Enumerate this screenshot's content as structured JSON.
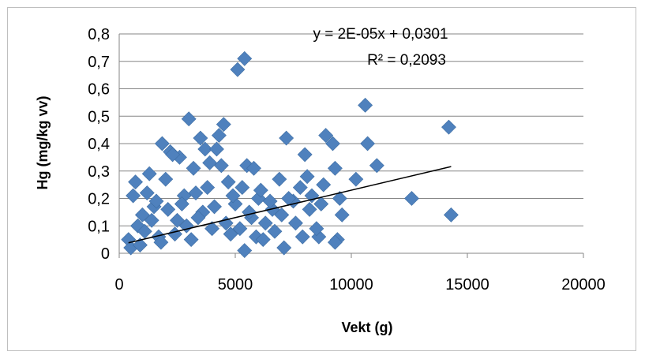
{
  "chart_data": {
    "type": "scatter",
    "xlabel": "Vekt (g)",
    "ylabel": "Hg (mg/kg vv)",
    "xlim": [
      0,
      20000
    ],
    "ylim": [
      0,
      0.8
    ],
    "x_ticks": [
      "0",
      "5000",
      "10000",
      "15000",
      "20000"
    ],
    "y_ticks": [
      "0",
      "0,1",
      "0,2",
      "0,3",
      "0,4",
      "0,5",
      "0,6",
      "0,7",
      "0,8"
    ],
    "grid": "horizontal",
    "legend": "none",
    "marker": "diamond",
    "marker_color": "#4f81bd",
    "trendline": {
      "type": "linear",
      "slope": 2e-05,
      "intercept": 0.0301,
      "x_range": [
        400,
        14300
      ],
      "color": "#000000",
      "equation": "y = 2E-05x + 0,0301",
      "r_squared": "R² = 0,2093"
    },
    "series": [
      {
        "points": [
          [
            5100,
            0.67
          ],
          [
            5400,
            0.71
          ],
          [
            3000,
            0.49
          ],
          [
            10600,
            0.54
          ],
          [
            14200,
            0.46
          ],
          [
            4500,
            0.47
          ],
          [
            8900,
            0.43
          ],
          [
            3500,
            0.42
          ],
          [
            7200,
            0.42
          ],
          [
            4300,
            0.43
          ],
          [
            10700,
            0.4
          ],
          [
            1850,
            0.4
          ],
          [
            9200,
            0.4
          ],
          [
            3700,
            0.38
          ],
          [
            4200,
            0.38
          ],
          [
            2200,
            0.37
          ],
          [
            8000,
            0.36
          ],
          [
            1300,
            0.29
          ],
          [
            11100,
            0.32
          ],
          [
            9300,
            0.31
          ],
          [
            5500,
            0.32
          ],
          [
            5800,
            0.31
          ],
          [
            10200,
            0.27
          ],
          [
            12600,
            0.2
          ],
          [
            14300,
            0.14
          ],
          [
            9500,
            0.2
          ],
          [
            9600,
            0.14
          ],
          [
            9400,
            0.05
          ],
          [
            9300,
            0.04
          ],
          [
            8600,
            0.06
          ],
          [
            700,
            0.26
          ],
          [
            2600,
            0.35
          ],
          [
            2300,
            0.36
          ],
          [
            3900,
            0.33
          ],
          [
            4400,
            0.32
          ],
          [
            6900,
            0.27
          ],
          [
            8100,
            0.28
          ],
          [
            600,
            0.21
          ],
          [
            400,
            0.05
          ],
          [
            500,
            0.02
          ],
          [
            5400,
            0.01
          ],
          [
            7100,
            0.02
          ],
          [
            800,
            0.1
          ],
          [
            1000,
            0.14
          ],
          [
            1200,
            0.22
          ],
          [
            1500,
            0.17
          ],
          [
            1700,
            0.06
          ],
          [
            2000,
            0.27
          ],
          [
            2500,
            0.12
          ],
          [
            2800,
            0.21
          ],
          [
            3200,
            0.31
          ],
          [
            3600,
            0.15
          ],
          [
            4000,
            0.09
          ],
          [
            4700,
            0.26
          ],
          [
            5000,
            0.18
          ],
          [
            5300,
            0.24
          ],
          [
            5700,
            0.13
          ],
          [
            6000,
            0.2
          ],
          [
            6300,
            0.11
          ],
          [
            6600,
            0.16
          ],
          [
            7500,
            0.19
          ],
          [
            7800,
            0.24
          ],
          [
            8300,
            0.21
          ],
          [
            8700,
            0.18
          ],
          [
            8800,
            0.25
          ],
          [
            900,
            0.03
          ],
          [
            1100,
            0.08
          ],
          [
            1400,
            0.12
          ],
          [
            1600,
            0.19
          ],
          [
            1800,
            0.04
          ],
          [
            2100,
            0.16
          ],
          [
            2400,
            0.07
          ],
          [
            2700,
            0.18
          ],
          [
            2900,
            0.1
          ],
          [
            3100,
            0.05
          ],
          [
            3300,
            0.22
          ],
          [
            3400,
            0.13
          ],
          [
            3800,
            0.24
          ],
          [
            4100,
            0.17
          ],
          [
            4600,
            0.11
          ],
          [
            4800,
            0.07
          ],
          [
            4900,
            0.21
          ],
          [
            5200,
            0.09
          ],
          [
            5600,
            0.15
          ],
          [
            5900,
            0.06
          ],
          [
            6100,
            0.23
          ],
          [
            6200,
            0.05
          ],
          [
            6500,
            0.19
          ],
          [
            6700,
            0.08
          ],
          [
            7000,
            0.14
          ],
          [
            7300,
            0.2
          ],
          [
            7600,
            0.11
          ],
          [
            7900,
            0.06
          ],
          [
            8200,
            0.16
          ],
          [
            8500,
            0.09
          ]
        ]
      }
    ]
  }
}
